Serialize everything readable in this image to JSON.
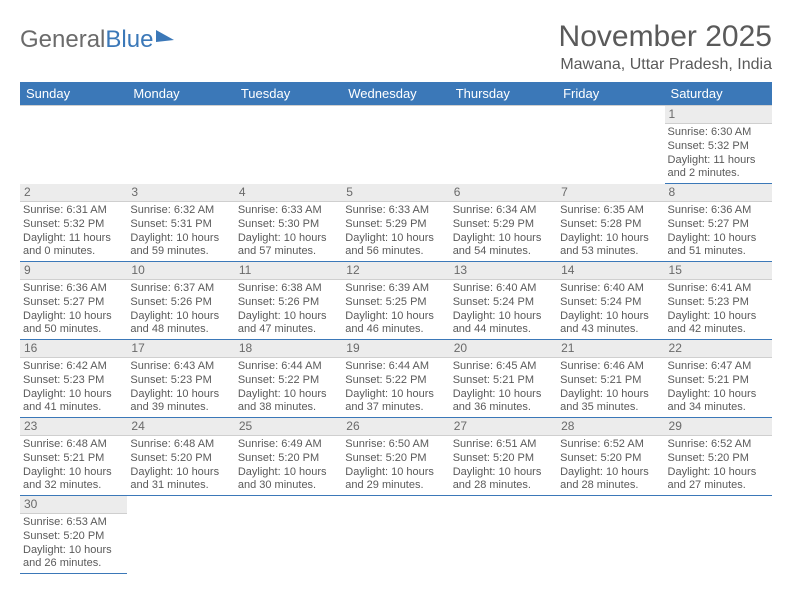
{
  "logo": {
    "word1": "General",
    "word2": "Blue"
  },
  "title": "November 2025",
  "subtitle": "Mawana, Uttar Pradesh, India",
  "colors": {
    "header_bg": "#3b78b8",
    "header_text": "#ffffff",
    "daynum_bg": "#ececec",
    "rule": "#3b78b8",
    "text": "#5a5a5a",
    "page_bg": "#ffffff"
  },
  "typography": {
    "title_fontsize": 30,
    "subtitle_fontsize": 16,
    "header_fontsize": 13,
    "cell_fontsize": 11,
    "daynum_fontsize": 12
  },
  "calendar": {
    "columns": [
      "Sunday",
      "Monday",
      "Tuesday",
      "Wednesday",
      "Thursday",
      "Friday",
      "Saturday"
    ],
    "weeks": [
      [
        null,
        null,
        null,
        null,
        null,
        null,
        {
          "day": "1",
          "sunrise": "Sunrise: 6:30 AM",
          "sunset": "Sunset: 5:32 PM",
          "dl1": "Daylight: 11 hours",
          "dl2": "and 2 minutes."
        }
      ],
      [
        {
          "day": "2",
          "sunrise": "Sunrise: 6:31 AM",
          "sunset": "Sunset: 5:32 PM",
          "dl1": "Daylight: 11 hours",
          "dl2": "and 0 minutes."
        },
        {
          "day": "3",
          "sunrise": "Sunrise: 6:32 AM",
          "sunset": "Sunset: 5:31 PM",
          "dl1": "Daylight: 10 hours",
          "dl2": "and 59 minutes."
        },
        {
          "day": "4",
          "sunrise": "Sunrise: 6:33 AM",
          "sunset": "Sunset: 5:30 PM",
          "dl1": "Daylight: 10 hours",
          "dl2": "and 57 minutes."
        },
        {
          "day": "5",
          "sunrise": "Sunrise: 6:33 AM",
          "sunset": "Sunset: 5:29 PM",
          "dl1": "Daylight: 10 hours",
          "dl2": "and 56 minutes."
        },
        {
          "day": "6",
          "sunrise": "Sunrise: 6:34 AM",
          "sunset": "Sunset: 5:29 PM",
          "dl1": "Daylight: 10 hours",
          "dl2": "and 54 minutes."
        },
        {
          "day": "7",
          "sunrise": "Sunrise: 6:35 AM",
          "sunset": "Sunset: 5:28 PM",
          "dl1": "Daylight: 10 hours",
          "dl2": "and 53 minutes."
        },
        {
          "day": "8",
          "sunrise": "Sunrise: 6:36 AM",
          "sunset": "Sunset: 5:27 PM",
          "dl1": "Daylight: 10 hours",
          "dl2": "and 51 minutes."
        }
      ],
      [
        {
          "day": "9",
          "sunrise": "Sunrise: 6:36 AM",
          "sunset": "Sunset: 5:27 PM",
          "dl1": "Daylight: 10 hours",
          "dl2": "and 50 minutes."
        },
        {
          "day": "10",
          "sunrise": "Sunrise: 6:37 AM",
          "sunset": "Sunset: 5:26 PM",
          "dl1": "Daylight: 10 hours",
          "dl2": "and 48 minutes."
        },
        {
          "day": "11",
          "sunrise": "Sunrise: 6:38 AM",
          "sunset": "Sunset: 5:26 PM",
          "dl1": "Daylight: 10 hours",
          "dl2": "and 47 minutes."
        },
        {
          "day": "12",
          "sunrise": "Sunrise: 6:39 AM",
          "sunset": "Sunset: 5:25 PM",
          "dl1": "Daylight: 10 hours",
          "dl2": "and 46 minutes."
        },
        {
          "day": "13",
          "sunrise": "Sunrise: 6:40 AM",
          "sunset": "Sunset: 5:24 PM",
          "dl1": "Daylight: 10 hours",
          "dl2": "and 44 minutes."
        },
        {
          "day": "14",
          "sunrise": "Sunrise: 6:40 AM",
          "sunset": "Sunset: 5:24 PM",
          "dl1": "Daylight: 10 hours",
          "dl2": "and 43 minutes."
        },
        {
          "day": "15",
          "sunrise": "Sunrise: 6:41 AM",
          "sunset": "Sunset: 5:23 PM",
          "dl1": "Daylight: 10 hours",
          "dl2": "and 42 minutes."
        }
      ],
      [
        {
          "day": "16",
          "sunrise": "Sunrise: 6:42 AM",
          "sunset": "Sunset: 5:23 PM",
          "dl1": "Daylight: 10 hours",
          "dl2": "and 41 minutes."
        },
        {
          "day": "17",
          "sunrise": "Sunrise: 6:43 AM",
          "sunset": "Sunset: 5:23 PM",
          "dl1": "Daylight: 10 hours",
          "dl2": "and 39 minutes."
        },
        {
          "day": "18",
          "sunrise": "Sunrise: 6:44 AM",
          "sunset": "Sunset: 5:22 PM",
          "dl1": "Daylight: 10 hours",
          "dl2": "and 38 minutes."
        },
        {
          "day": "19",
          "sunrise": "Sunrise: 6:44 AM",
          "sunset": "Sunset: 5:22 PM",
          "dl1": "Daylight: 10 hours",
          "dl2": "and 37 minutes."
        },
        {
          "day": "20",
          "sunrise": "Sunrise: 6:45 AM",
          "sunset": "Sunset: 5:21 PM",
          "dl1": "Daylight: 10 hours",
          "dl2": "and 36 minutes."
        },
        {
          "day": "21",
          "sunrise": "Sunrise: 6:46 AM",
          "sunset": "Sunset: 5:21 PM",
          "dl1": "Daylight: 10 hours",
          "dl2": "and 35 minutes."
        },
        {
          "day": "22",
          "sunrise": "Sunrise: 6:47 AM",
          "sunset": "Sunset: 5:21 PM",
          "dl1": "Daylight: 10 hours",
          "dl2": "and 34 minutes."
        }
      ],
      [
        {
          "day": "23",
          "sunrise": "Sunrise: 6:48 AM",
          "sunset": "Sunset: 5:21 PM",
          "dl1": "Daylight: 10 hours",
          "dl2": "and 32 minutes."
        },
        {
          "day": "24",
          "sunrise": "Sunrise: 6:48 AM",
          "sunset": "Sunset: 5:20 PM",
          "dl1": "Daylight: 10 hours",
          "dl2": "and 31 minutes."
        },
        {
          "day": "25",
          "sunrise": "Sunrise: 6:49 AM",
          "sunset": "Sunset: 5:20 PM",
          "dl1": "Daylight: 10 hours",
          "dl2": "and 30 minutes."
        },
        {
          "day": "26",
          "sunrise": "Sunrise: 6:50 AM",
          "sunset": "Sunset: 5:20 PM",
          "dl1": "Daylight: 10 hours",
          "dl2": "and 29 minutes."
        },
        {
          "day": "27",
          "sunrise": "Sunrise: 6:51 AM",
          "sunset": "Sunset: 5:20 PM",
          "dl1": "Daylight: 10 hours",
          "dl2": "and 28 minutes."
        },
        {
          "day": "28",
          "sunrise": "Sunrise: 6:52 AM",
          "sunset": "Sunset: 5:20 PM",
          "dl1": "Daylight: 10 hours",
          "dl2": "and 28 minutes."
        },
        {
          "day": "29",
          "sunrise": "Sunrise: 6:52 AM",
          "sunset": "Sunset: 5:20 PM",
          "dl1": "Daylight: 10 hours",
          "dl2": "and 27 minutes."
        }
      ],
      [
        {
          "day": "30",
          "sunrise": "Sunrise: 6:53 AM",
          "sunset": "Sunset: 5:20 PM",
          "dl1": "Daylight: 10 hours",
          "dl2": "and 26 minutes."
        },
        null,
        null,
        null,
        null,
        null,
        null
      ]
    ]
  }
}
